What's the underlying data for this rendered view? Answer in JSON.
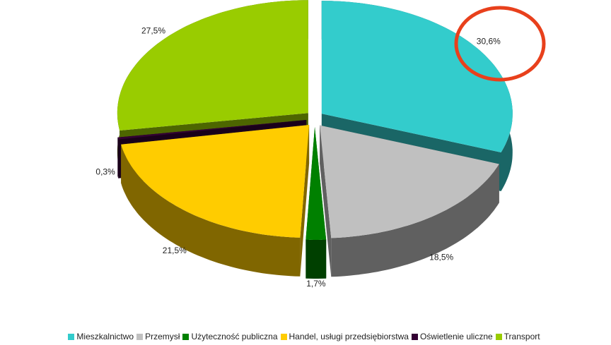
{
  "chart_data": {
    "type": "pie",
    "categories": [
      "Mieszkalnictwo",
      "Przemysł",
      "Użyteczność publiczna",
      "Handel, usługi przedsiębiorstwa",
      "Oświetlenie uliczne",
      "Transport"
    ],
    "values": [
      30.6,
      18.5,
      1.7,
      21.5,
      0.3,
      27.5
    ],
    "value_labels": [
      "30,6%",
      "18,5%",
      "1,7%",
      "21,5%",
      "0,3%",
      "27,5%"
    ],
    "colors": [
      "#33cccc",
      "#c0c0c0",
      "#008000",
      "#ffcc00",
      "#330033",
      "#99cc00"
    ],
    "legend": "bottom"
  }
}
